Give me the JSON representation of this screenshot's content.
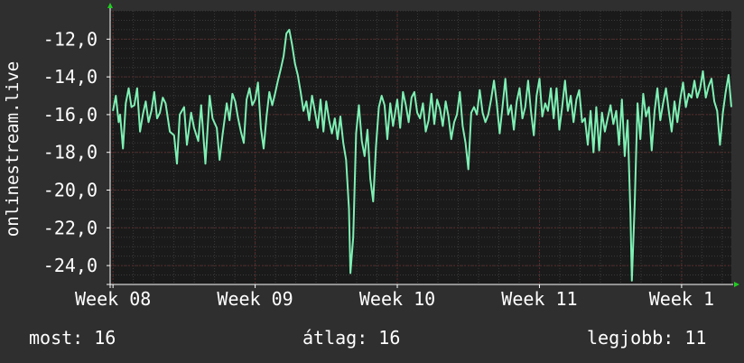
{
  "chart_data": {
    "type": "line",
    "ylabel": "onlinestream.live",
    "yticks": [
      "-12,0",
      "-14,0",
      "-16,0",
      "-18,0",
      "-20,0",
      "-22,0",
      "-24,0"
    ],
    "ytick_values": [
      -12,
      -14,
      -16,
      -18,
      -20,
      -22,
      -24
    ],
    "ylim": [
      -25,
      -10.5
    ],
    "xticks": [
      "Week 08",
      "Week 09",
      "Week 10",
      "Week 11",
      "Week 1"
    ],
    "xtick_values": [
      0,
      1,
      2,
      3,
      4
    ],
    "xlim": [
      -0.02,
      4.35
    ],
    "grid": true,
    "colors": {
      "background": "#2f2f2f",
      "plot": "#1a1a1a",
      "grid": "#5a2a2a",
      "line": "#7ef0b4",
      "axis": "#ffffff",
      "arrow": "#22cc22"
    },
    "series": [
      {
        "values": [
          [
            0.0,
            -15.8
          ],
          [
            0.02,
            -15.0
          ],
          [
            0.04,
            -16.4
          ],
          [
            0.05,
            -16.0
          ],
          [
            0.07,
            -17.8
          ],
          [
            0.09,
            -15.4
          ],
          [
            0.11,
            -14.6
          ],
          [
            0.13,
            -15.6
          ],
          [
            0.15,
            -15.5
          ],
          [
            0.17,
            -14.6
          ],
          [
            0.19,
            -16.9
          ],
          [
            0.21,
            -16.0
          ],
          [
            0.23,
            -15.3
          ],
          [
            0.25,
            -16.4
          ],
          [
            0.27,
            -15.8
          ],
          [
            0.29,
            -14.8
          ],
          [
            0.31,
            -16.2
          ],
          [
            0.33,
            -15.9
          ],
          [
            0.35,
            -15.1
          ],
          [
            0.37,
            -15.4
          ],
          [
            0.4,
            -16.9
          ],
          [
            0.43,
            -17.1
          ],
          [
            0.45,
            -18.6
          ],
          [
            0.47,
            -16.0
          ],
          [
            0.5,
            -15.6
          ],
          [
            0.52,
            -17.6
          ],
          [
            0.55,
            -15.9
          ],
          [
            0.57,
            -16.7
          ],
          [
            0.6,
            -17.4
          ],
          [
            0.62,
            -15.5
          ],
          [
            0.65,
            -18.6
          ],
          [
            0.68,
            -15.0
          ],
          [
            0.7,
            -16.2
          ],
          [
            0.73,
            -16.7
          ],
          [
            0.75,
            -18.4
          ],
          [
            0.77,
            -17.1
          ],
          [
            0.8,
            -15.4
          ],
          [
            0.82,
            -16.3
          ],
          [
            0.84,
            -14.9
          ],
          [
            0.86,
            -15.3
          ],
          [
            0.88,
            -16.2
          ],
          [
            0.9,
            -16.9
          ],
          [
            0.92,
            -17.5
          ],
          [
            0.94,
            -15.2
          ],
          [
            0.96,
            -14.6
          ],
          [
            0.98,
            -15.5
          ],
          [
            1.0,
            -15.2
          ],
          [
            1.02,
            -14.3
          ],
          [
            1.04,
            -16.7
          ],
          [
            1.06,
            -17.8
          ],
          [
            1.08,
            -16.1
          ],
          [
            1.1,
            -14.8
          ],
          [
            1.12,
            -15.5
          ],
          [
            1.14,
            -14.9
          ],
          [
            1.16,
            -14.2
          ],
          [
            1.18,
            -13.6
          ],
          [
            1.2,
            -12.9
          ],
          [
            1.22,
            -11.7
          ],
          [
            1.24,
            -11.5
          ],
          [
            1.26,
            -12.3
          ],
          [
            1.28,
            -13.3
          ],
          [
            1.3,
            -13.9
          ],
          [
            1.32,
            -14.8
          ],
          [
            1.34,
            -15.8
          ],
          [
            1.36,
            -15.3
          ],
          [
            1.38,
            -16.3
          ],
          [
            1.4,
            -15.0
          ],
          [
            1.42,
            -15.8
          ],
          [
            1.44,
            -16.7
          ],
          [
            1.46,
            -15.2
          ],
          [
            1.48,
            -16.9
          ],
          [
            1.5,
            -15.3
          ],
          [
            1.52,
            -16.3
          ],
          [
            1.54,
            -17.0
          ],
          [
            1.56,
            -16.2
          ],
          [
            1.58,
            -17.3
          ],
          [
            1.6,
            -16.1
          ],
          [
            1.62,
            -17.5
          ],
          [
            1.64,
            -18.4
          ],
          [
            1.66,
            -21.0
          ],
          [
            1.67,
            -24.4
          ],
          [
            1.69,
            -22.5
          ],
          [
            1.71,
            -17.0
          ],
          [
            1.73,
            -15.5
          ],
          [
            1.75,
            -17.4
          ],
          [
            1.77,
            -18.2
          ],
          [
            1.79,
            -16.8
          ],
          [
            1.81,
            -19.4
          ],
          [
            1.83,
            -20.6
          ],
          [
            1.85,
            -17.7
          ],
          [
            1.87,
            -15.6
          ],
          [
            1.89,
            -15.0
          ],
          [
            1.91,
            -15.5
          ],
          [
            1.93,
            -17.3
          ],
          [
            1.95,
            -15.4
          ],
          [
            1.97,
            -16.6
          ],
          [
            2.0,
            -15.2
          ],
          [
            2.02,
            -16.7
          ],
          [
            2.04,
            -14.8
          ],
          [
            2.06,
            -15.5
          ],
          [
            2.08,
            -16.4
          ],
          [
            2.1,
            -15.1
          ],
          [
            2.12,
            -14.8
          ],
          [
            2.14,
            -15.9
          ],
          [
            2.16,
            -16.2
          ],
          [
            2.18,
            -15.4
          ],
          [
            2.2,
            -16.9
          ],
          [
            2.22,
            -16.3
          ],
          [
            2.24,
            -14.9
          ],
          [
            2.26,
            -16.5
          ],
          [
            2.28,
            -15.2
          ],
          [
            2.3,
            -15.7
          ],
          [
            2.32,
            -16.6
          ],
          [
            2.34,
            -15.3
          ],
          [
            2.36,
            -16.1
          ],
          [
            2.38,
            -17.3
          ],
          [
            2.4,
            -16.4
          ],
          [
            2.42,
            -16.0
          ],
          [
            2.44,
            -14.8
          ],
          [
            2.46,
            -16.6
          ],
          [
            2.48,
            -17.5
          ],
          [
            2.5,
            -18.9
          ],
          [
            2.52,
            -15.9
          ],
          [
            2.54,
            -15.6
          ],
          [
            2.56,
            -16.0
          ],
          [
            2.58,
            -14.7
          ],
          [
            2.6,
            -15.9
          ],
          [
            2.62,
            -16.4
          ],
          [
            2.64,
            -16.0
          ],
          [
            2.66,
            -15.2
          ],
          [
            2.68,
            -14.2
          ],
          [
            2.7,
            -15.4
          ],
          [
            2.72,
            -17.0
          ],
          [
            2.74,
            -15.6
          ],
          [
            2.76,
            -14.1
          ],
          [
            2.78,
            -16.0
          ],
          [
            2.8,
            -15.5
          ],
          [
            2.82,
            -16.8
          ],
          [
            2.84,
            -15.3
          ],
          [
            2.86,
            -14.6
          ],
          [
            2.88,
            -16.2
          ],
          [
            2.9,
            -15.6
          ],
          [
            2.92,
            -14.2
          ],
          [
            2.94,
            -15.8
          ],
          [
            2.96,
            -17.1
          ],
          [
            2.98,
            -15.0
          ],
          [
            3.0,
            -14.1
          ],
          [
            3.02,
            -16.1
          ],
          [
            3.04,
            -15.4
          ],
          [
            3.06,
            -15.8
          ],
          [
            3.08,
            -14.6
          ],
          [
            3.1,
            -16.2
          ],
          [
            3.12,
            -14.6
          ],
          [
            3.14,
            -16.8
          ],
          [
            3.16,
            -15.6
          ],
          [
            3.18,
            -14.2
          ],
          [
            3.2,
            -15.8
          ],
          [
            3.22,
            -15.0
          ],
          [
            3.24,
            -16.4
          ],
          [
            3.26,
            -15.2
          ],
          [
            3.28,
            -14.7
          ],
          [
            3.3,
            -16.4
          ],
          [
            3.32,
            -16.2
          ],
          [
            3.34,
            -17.6
          ],
          [
            3.36,
            -15.8
          ],
          [
            3.38,
            -18.0
          ],
          [
            3.4,
            -15.6
          ],
          [
            3.42,
            -17.9
          ],
          [
            3.44,
            -15.9
          ],
          [
            3.46,
            -16.9
          ],
          [
            3.48,
            -16.2
          ],
          [
            3.5,
            -15.5
          ],
          [
            3.52,
            -16.5
          ],
          [
            3.54,
            -15.8
          ],
          [
            3.56,
            -17.6
          ],
          [
            3.58,
            -15.2
          ],
          [
            3.6,
            -18.2
          ],
          [
            3.62,
            -16.3
          ],
          [
            3.64,
            -21.2
          ],
          [
            3.65,
            -24.8
          ],
          [
            3.67,
            -20.8
          ],
          [
            3.69,
            -15.4
          ],
          [
            3.71,
            -17.3
          ],
          [
            3.73,
            -14.9
          ],
          [
            3.75,
            -16.1
          ],
          [
            3.77,
            -15.6
          ],
          [
            3.79,
            -17.9
          ],
          [
            3.81,
            -15.8
          ],
          [
            3.83,
            -14.6
          ],
          [
            3.85,
            -16.3
          ],
          [
            3.87,
            -15.4
          ],
          [
            3.89,
            -14.6
          ],
          [
            3.91,
            -15.8
          ],
          [
            3.93,
            -16.9
          ],
          [
            3.95,
            -15.3
          ],
          [
            3.97,
            -16.4
          ],
          [
            3.99,
            -15.2
          ],
          [
            4.01,
            -14.3
          ],
          [
            4.03,
            -15.6
          ],
          [
            4.05,
            -14.9
          ],
          [
            4.07,
            -15.1
          ],
          [
            4.09,
            -14.2
          ],
          [
            4.11,
            -15.1
          ],
          [
            4.13,
            -14.6
          ],
          [
            4.15,
            -13.7
          ],
          [
            4.17,
            -15.1
          ],
          [
            4.19,
            -14.5
          ],
          [
            4.21,
            -14.1
          ],
          [
            4.23,
            -15.3
          ],
          [
            4.25,
            -15.8
          ],
          [
            4.27,
            -17.6
          ],
          [
            4.29,
            -15.9
          ],
          [
            4.31,
            -14.8
          ],
          [
            4.33,
            -13.9
          ],
          [
            4.35,
            -15.6
          ]
        ]
      }
    ]
  },
  "stats": {
    "most": "most: 16",
    "avg": "átlag: 16",
    "best": "legjobb: 11"
  }
}
